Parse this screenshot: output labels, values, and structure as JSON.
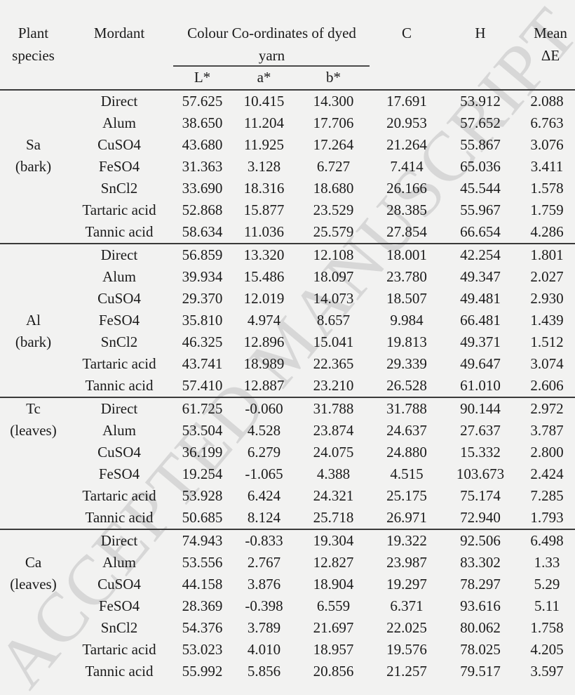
{
  "page": {
    "background": "#f2f2f1",
    "text_color": "#1b1b1b",
    "rule_color": "#3a3a3a"
  },
  "watermark": {
    "text": "ACCEPTED MANUSCRIPT",
    "color": "#d7d7d7"
  },
  "table": {
    "header": {
      "col_plant": "Plant species",
      "col_mordant": "Mordant",
      "col_colour": "Colour Co-ordinates of dyed yarn",
      "sub_L": "L*",
      "sub_a": "a*",
      "sub_b": "b*",
      "col_C": "C",
      "col_H": "H",
      "col_mean": "Mean ΔE"
    },
    "groups": [
      {
        "species": "Sa",
        "note": "(bark)",
        "rows": [
          {
            "mordant": "Direct",
            "L": "57.625",
            "a": "10.415",
            "b": "14.300",
            "C": "17.691",
            "H": "53.912",
            "dE": "2.088"
          },
          {
            "mordant": "Alum",
            "L": "38.650",
            "a": "11.204",
            "b": "17.706",
            "C": "20.953",
            "H": "57.652",
            "dE": "6.763"
          },
          {
            "mordant": "CuSO4",
            "L": "43.680",
            "a": "11.925",
            "b": "17.264",
            "C": "21.264",
            "H": "55.867",
            "dE": "3.076"
          },
          {
            "mordant": "FeSO4",
            "L": "31.363",
            "a": "3.128",
            "b": "6.727",
            "C": "7.414",
            "H": "65.036",
            "dE": "3.411"
          },
          {
            "mordant": "SnCl2",
            "L": "33.690",
            "a": "18.316",
            "b": "18.680",
            "C": "26.166",
            "H": "45.544",
            "dE": "1.578"
          },
          {
            "mordant": "Tartaric acid",
            "L": "52.868",
            "a": "15.877",
            "b": "23.529",
            "C": "28.385",
            "H": "55.967",
            "dE": "1.759"
          },
          {
            "mordant": "Tannic acid",
            "L": "58.634",
            "a": "11.036",
            "b": "25.579",
            "C": "27.854",
            "H": "66.654",
            "dE": "4.286"
          }
        ]
      },
      {
        "species": "Al",
        "note": "(bark)",
        "rows": [
          {
            "mordant": "Direct",
            "L": "56.859",
            "a": "13.320",
            "b": "12.108",
            "C": "18.001",
            "H": "42.254",
            "dE": "1.801"
          },
          {
            "mordant": "Alum",
            "L": "39.934",
            "a": "15.486",
            "b": "18.097",
            "C": "23.780",
            "H": "49.347",
            "dE": "2.027"
          },
          {
            "mordant": "CuSO4",
            "L": "29.370",
            "a": "12.019",
            "b": "14.073",
            "C": "18.507",
            "H": "49.481",
            "dE": "2.930"
          },
          {
            "mordant": "FeSO4",
            "L": "35.810",
            "a": "4.974",
            "b": "8.657",
            "C": "9.984",
            "H": "66.481",
            "dE": "1.439"
          },
          {
            "mordant": "SnCl2",
            "L": "46.325",
            "a": "12.896",
            "b": "15.041",
            "C": "19.813",
            "H": "49.371",
            "dE": "1.512"
          },
          {
            "mordant": "Tartaric acid",
            "L": "43.741",
            "a": "18.989",
            "b": "22.365",
            "C": "29.339",
            "H": "49.647",
            "dE": "3.074"
          },
          {
            "mordant": "Tannic acid",
            "L": "57.410",
            "a": "12.887",
            "b": "23.210",
            "C": "26.528",
            "H": "61.010",
            "dE": "2.606"
          }
        ]
      },
      {
        "species": "Tc",
        "note": "(leaves)",
        "rows": [
          {
            "mordant": "Direct",
            "L": "61.725",
            "a": "-0.060",
            "b": "31.788",
            "C": "31.788",
            "H": "90.144",
            "dE": "2.972"
          },
          {
            "mordant": "Alum",
            "L": "53.504",
            "a": "4.528",
            "b": "23.874",
            "C": "24.637",
            "H": "27.637",
            "dE": "3.787"
          },
          {
            "mordant": "CuSO4",
            "L": "36.199",
            "a": "6.279",
            "b": "24.075",
            "C": "24.880",
            "H": "15.332",
            "dE": "2.800"
          },
          {
            "mordant": "FeSO4",
            "L": "19.254",
            "a": "-1.065",
            "b": "4.388",
            "C": "4.515",
            "H": "103.673",
            "dE": "2.424"
          },
          {
            "mordant": "Tartaric acid",
            "L": "53.928",
            "a": "6.424",
            "b": "24.321",
            "C": "25.175",
            "H": "75.174",
            "dE": "7.285"
          },
          {
            "mordant": "Tannic acid",
            "L": "50.685",
            "a": "8.124",
            "b": "25.718",
            "C": "26.971",
            "H": "72.940",
            "dE": "1.793"
          }
        ]
      },
      {
        "species": "Ca",
        "note": "(leaves)",
        "rows": [
          {
            "mordant": "Direct",
            "L": "74.943",
            "a": "-0.833",
            "b": "19.304",
            "C": "19.322",
            "H": "92.506",
            "dE": "6.498"
          },
          {
            "mordant": "Alum",
            "L": "53.556",
            "a": "2.767",
            "b": "12.827",
            "C": "23.987",
            "H": "83.302",
            "dE": "1.33"
          },
          {
            "mordant": "CuSO4",
            "L": "44.158",
            "a": "3.876",
            "b": "18.904",
            "C": "19.297",
            "H": "78.297",
            "dE": "5.29"
          },
          {
            "mordant": "FeSO4",
            "L": "28.369",
            "a": "-0.398",
            "b": "6.559",
            "C": "6.371",
            "H": "93.616",
            "dE": "5.11"
          },
          {
            "mordant": "SnCl2",
            "L": "54.376",
            "a": "3.789",
            "b": "21.697",
            "C": "22.025",
            "H": "80.062",
            "dE": "1.758"
          },
          {
            "mordant": "Tartaric acid",
            "L": "53.023",
            "a": "4.010",
            "b": "18.957",
            "C": "19.576",
            "H": "78.025",
            "dE": "4.205"
          },
          {
            "mordant": "Tannic acid",
            "L": "55.992",
            "a": "5.856",
            "b": "20.856",
            "C": "21.257",
            "H": "79.517",
            "dE": "3.597"
          }
        ]
      }
    ]
  }
}
